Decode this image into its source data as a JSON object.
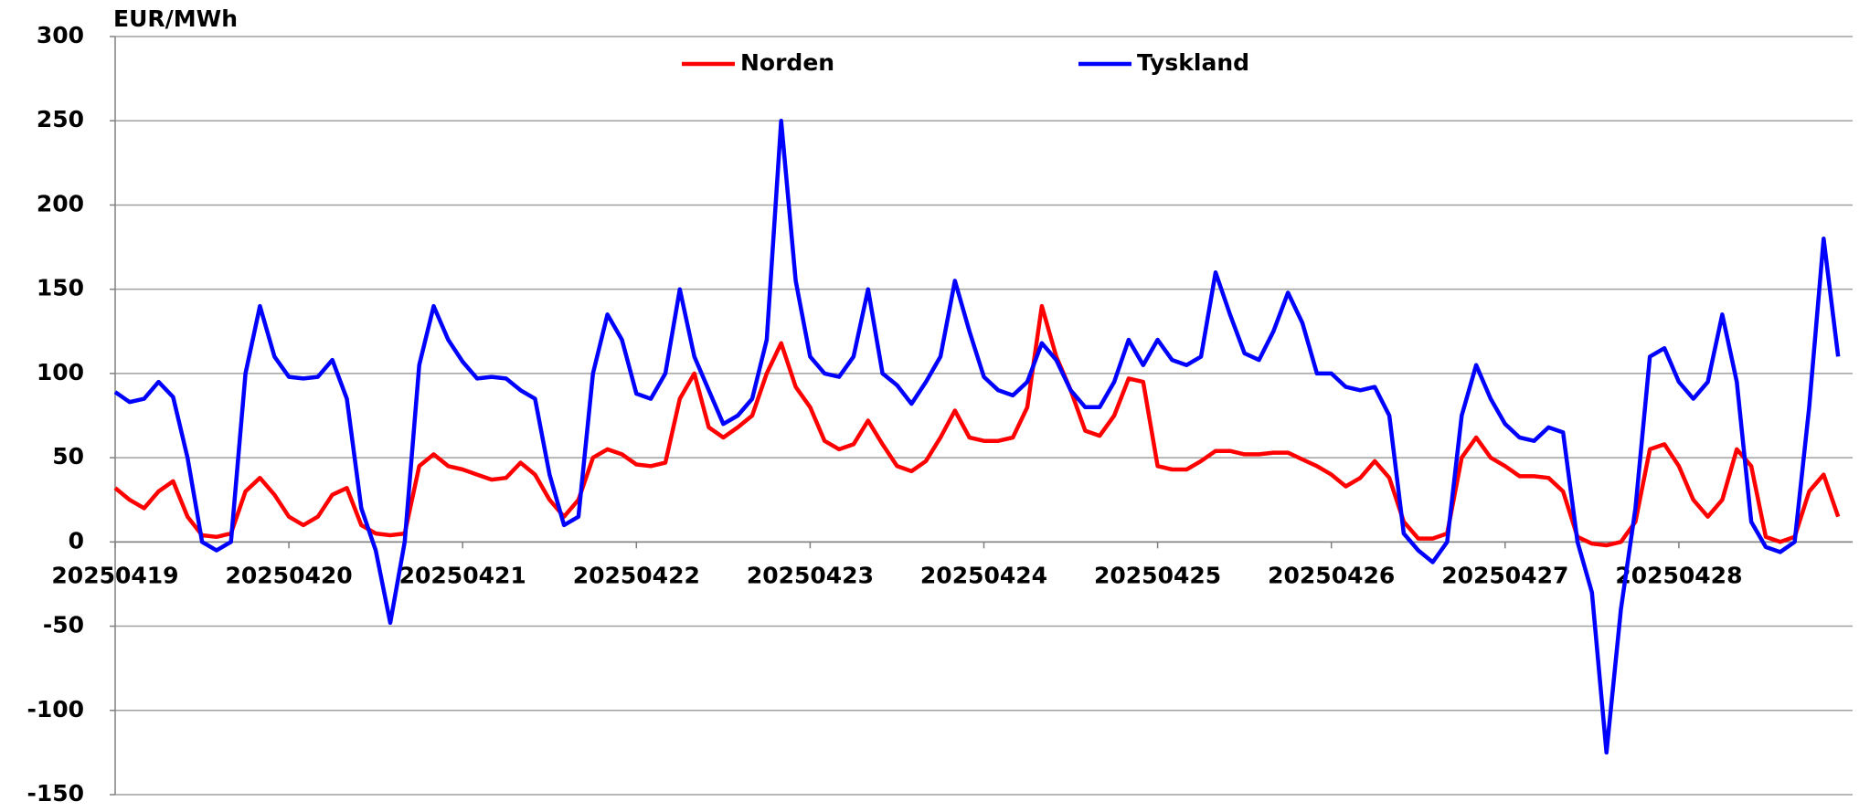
{
  "chart_data": {
    "type": "line",
    "y_label": "EUR/MWh",
    "categories": [
      "20250419",
      null,
      null,
      null,
      null,
      null,
      null,
      null,
      null,
      null,
      null,
      null,
      "20250420",
      null,
      null,
      null,
      null,
      null,
      null,
      null,
      null,
      null,
      null,
      null,
      "20250421",
      null,
      null,
      null,
      null,
      null,
      null,
      null,
      null,
      null,
      null,
      null,
      "20250422",
      null,
      null,
      null,
      null,
      null,
      null,
      null,
      null,
      null,
      null,
      null,
      "20250423",
      null,
      null,
      null,
      null,
      null,
      null,
      null,
      null,
      null,
      null,
      null,
      "20250424",
      null,
      null,
      null,
      null,
      null,
      null,
      null,
      null,
      null,
      null,
      null,
      "20250425",
      null,
      null,
      null,
      null,
      null,
      null,
      null,
      null,
      null,
      null,
      null,
      "20250426",
      null,
      null,
      null,
      null,
      null,
      null,
      null,
      null,
      null,
      null,
      null,
      "20250427",
      null,
      null,
      null,
      null,
      null,
      null,
      null,
      null,
      null,
      null,
      null,
      "20250428",
      null,
      null,
      null,
      null,
      null,
      null,
      null,
      null,
      null,
      null,
      null
    ],
    "series": [
      {
        "name": "Norden",
        "color": "#ff0000",
        "values": [
          32,
          25,
          20,
          30,
          36,
          15,
          4,
          3,
          5,
          30,
          38,
          28,
          15,
          10,
          15,
          28,
          32,
          10,
          5,
          4,
          5,
          45,
          52,
          45,
          43,
          40,
          37,
          38,
          47,
          40,
          25,
          15,
          25,
          50,
          55,
          52,
          46,
          45,
          47,
          85,
          100,
          68,
          62,
          68,
          75,
          100,
          118,
          92,
          80,
          60,
          55,
          58,
          72,
          58,
          45,
          42,
          48,
          62,
          78,
          62,
          60,
          60,
          62,
          80,
          140,
          110,
          90,
          66,
          63,
          75,
          97,
          95,
          45,
          43,
          43,
          48,
          54,
          54,
          52,
          52,
          53,
          53,
          49,
          45,
          40,
          33,
          38,
          48,
          38,
          12,
          2,
          2,
          5,
          50,
          62,
          50,
          45,
          39,
          39,
          38,
          30,
          3,
          -1,
          -2,
          0,
          12,
          55,
          58,
          45,
          25,
          15,
          25,
          55,
          45,
          3,
          0,
          3,
          30,
          40,
          15
        ]
      },
      {
        "name": "Tyskland",
        "color": "#0000ff",
        "values": [
          89,
          83,
          85,
          95,
          86,
          50,
          0,
          -5,
          0,
          100,
          140,
          110,
          98,
          97,
          98,
          108,
          85,
          20,
          -5,
          -48,
          0,
          105,
          140,
          120,
          107,
          97,
          98,
          97,
          90,
          85,
          40,
          10,
          15,
          100,
          135,
          120,
          88,
          85,
          100,
          150,
          110,
          90,
          70,
          75,
          85,
          120,
          250,
          155,
          110,
          100,
          98,
          110,
          150,
          100,
          93,
          82,
          95,
          110,
          155,
          125,
          98,
          90,
          87,
          95,
          118,
          108,
          90,
          80,
          80,
          95,
          120,
          105,
          120,
          108,
          105,
          110,
          160,
          135,
          112,
          108,
          125,
          148,
          130,
          100,
          100,
          92,
          90,
          92,
          75,
          5,
          -5,
          -12,
          0,
          75,
          105,
          85,
          70,
          62,
          60,
          68,
          65,
          0,
          -30,
          -125,
          -40,
          20,
          110,
          115,
          95,
          85,
          95,
          135,
          95,
          12,
          -3,
          -6,
          0,
          80,
          180,
          110
        ]
      }
    ],
    "ylim": [
      -150,
      300
    ],
    "yticks": [
      -150,
      -100,
      -50,
      0,
      50,
      100,
      150,
      200,
      250,
      300
    ],
    "grid": true
  }
}
